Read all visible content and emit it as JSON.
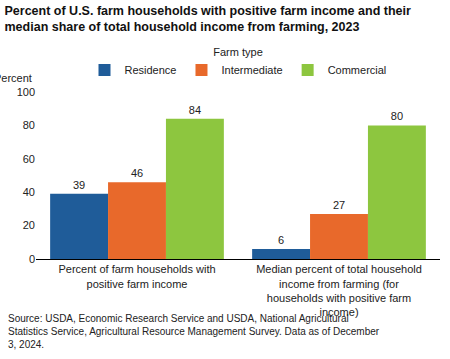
{
  "chart_data": {
    "type": "bar",
    "title": "Percent of U.S. farm households with positive farm income and their median share of total household income from farming, 2023",
    "y_label": "Percent",
    "categories": [
      "Percent of farm households with positive farm income",
      "Median percent of total household income from farming (for households with positive farm income)"
    ],
    "series": [
      {
        "name": "Residence",
        "color": "#1f5c99",
        "values": [
          39,
          6
        ]
      },
      {
        "name": "Intermediate",
        "color": "#e8692b",
        "values": [
          46,
          27
        ]
      },
      {
        "name": "Commercial",
        "color": "#8dc63f",
        "values": [
          84,
          80
        ]
      }
    ],
    "ylim": [
      0,
      100
    ],
    "yticks": [
      0,
      20,
      40,
      60,
      80,
      100
    ],
    "grid": false,
    "data_labels": true,
    "legend": "top",
    "legend_title": "Farm type",
    "annotations": [
      "Source: USDA, Economic Research Service and USDA, National Agricultural Statistics Service, Agricultural Resource Management Survey. Data as of December 3, 2024."
    ]
  }
}
